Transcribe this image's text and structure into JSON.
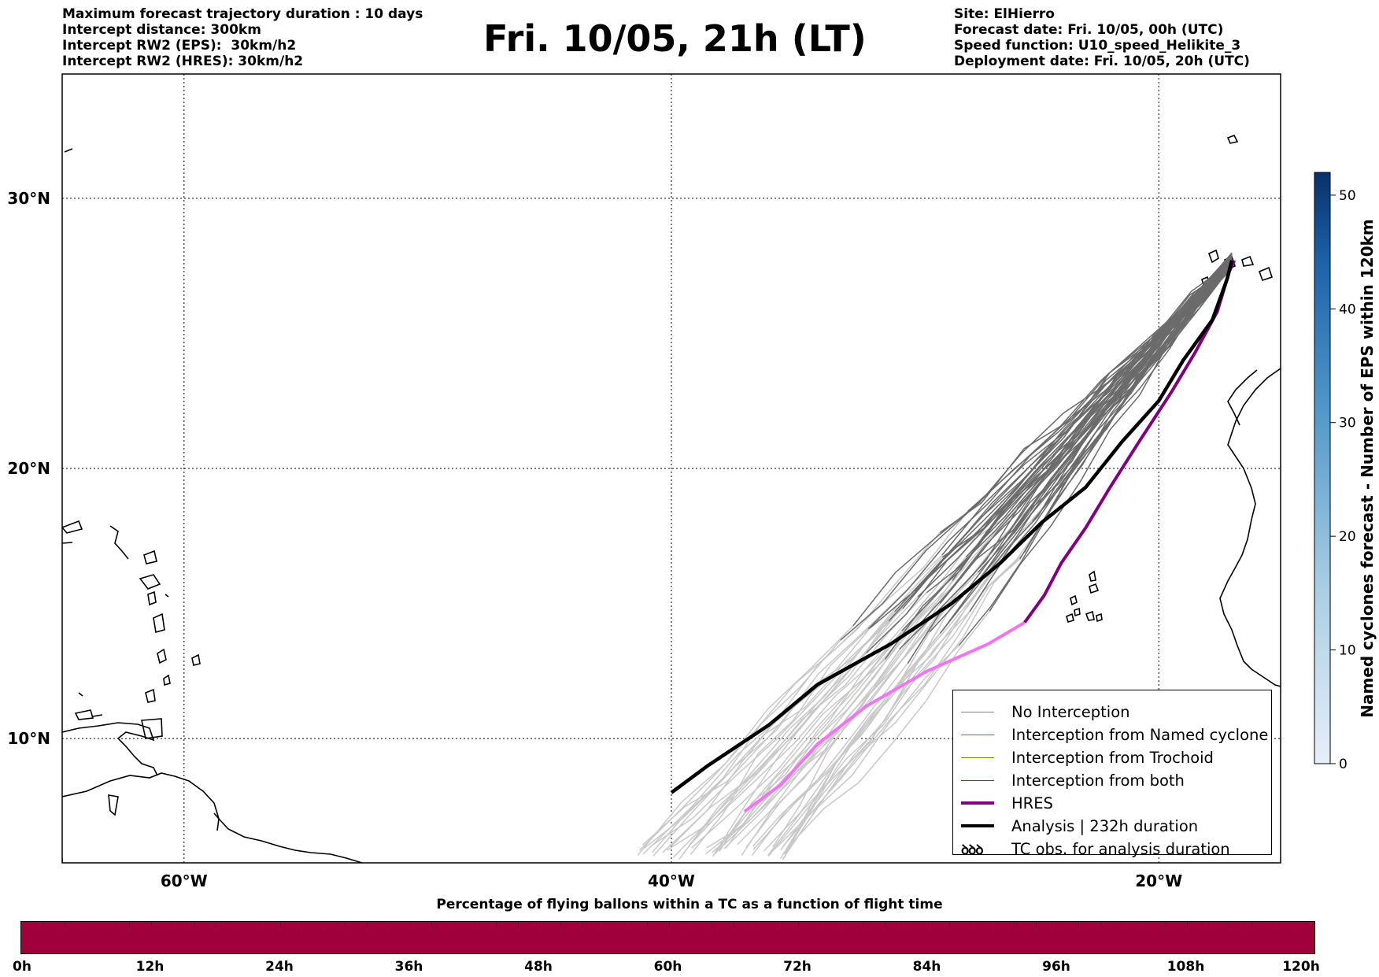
{
  "header": {
    "left_lines": [
      "Maximum forecast trajectory duration : 10 days",
      "Intercept distance: 300km",
      "Intercept RW2 (EPS):  30km/h2",
      "Intercept RW2 (HRES): 30km/h2"
    ],
    "title": "Fri. 10/05, 21h (LT)",
    "right_lines": [
      "Site: ElHierro",
      "Forecast date: Fri. 10/05, 00h (UTC)",
      "Speed function: U10_speed_Helikite_3",
      "Deployment date: Fri. 10/05, 20h (UTC)"
    ]
  },
  "map": {
    "lon_range": [
      -65,
      -15
    ],
    "lat_range": [
      5.4,
      34.6
    ],
    "lon_labels": [
      {
        "lon": -60,
        "label": "60°W"
      },
      {
        "lon": -40,
        "label": "40°W"
      },
      {
        "lon": -20,
        "label": "20°W"
      }
    ],
    "lat_labels": [
      {
        "lat": 30,
        "label": "30°N"
      },
      {
        "lat": 20,
        "label": "20°N"
      },
      {
        "lat": 10,
        "label": "10°N"
      }
    ],
    "grid": true,
    "colors": {
      "no_interception": "#6b6b6b",
      "light_member": "#c8c8c8",
      "hres": "#800080",
      "hres_light": "#ee77ee",
      "analysis": "#000000",
      "coast": "#000000"
    }
  },
  "legend": {
    "items": [
      {
        "label": "No Interception",
        "color": "#808080",
        "symbol": "line-thin"
      },
      {
        "label": "Interception from Named cyclone",
        "color": "#ff4500",
        "symbol": "line-thin"
      },
      {
        "label": "Interception from Trochoid",
        "color": "#808000",
        "symbol": "line-thin"
      },
      {
        "label": "Interception from both",
        "color": "#008000",
        "symbol": "line-thin"
      },
      {
        "label": "HRES",
        "color": "#800080",
        "symbol": "line-thick"
      },
      {
        "label": "Analysis | 232h duration",
        "color": "#000000",
        "symbol": "line-thick"
      },
      {
        "label": "TC obs. for analysis duration",
        "color": "#000000",
        "symbol": "tc-icon",
        "glyph": "ꝺꝺꝺ"
      }
    ]
  },
  "colorbar": {
    "label": "Named cyclones forecast - Number of EPS within 120km",
    "min": 0,
    "max": 52,
    "ticks": [
      0,
      10,
      20,
      30,
      40,
      50
    ],
    "color_low": "#e6eff9",
    "color_high": "#08306b"
  },
  "timebar": {
    "caption": "Percentage of flying ballons within a TC as a function of flight time",
    "color": "#a0003c",
    "hour_labels": [
      "0h",
      "12h",
      "24h",
      "36h",
      "48h",
      "60h",
      "72h",
      "84h",
      "96h",
      "108h",
      "120h"
    ]
  },
  "trajectories": {
    "analysis": [
      [
        -40.0,
        8.0
      ],
      [
        -38.5,
        9.0
      ],
      [
        -36.0,
        10.5
      ],
      [
        -34.0,
        12.0
      ],
      [
        -31.0,
        13.5
      ],
      [
        -28.5,
        15.0
      ],
      [
        -26.5,
        16.5
      ],
      [
        -24.8,
        18.0
      ],
      [
        -23.0,
        19.3
      ],
      [
        -21.5,
        21.0
      ],
      [
        -20.0,
        22.5
      ],
      [
        -19.0,
        24.0
      ],
      [
        -17.8,
        25.5
      ],
      [
        -17.2,
        27.0
      ],
      [
        -17.0,
        27.7
      ]
    ],
    "hres_light": [
      [
        -37.0,
        7.3
      ],
      [
        -35.5,
        8.3
      ],
      [
        -34.0,
        9.8
      ],
      [
        -32.0,
        11.2
      ],
      [
        -29.5,
        12.5
      ],
      [
        -27.0,
        13.5
      ],
      [
        -25.5,
        14.3
      ]
    ],
    "hres_dark": [
      [
        -25.5,
        14.3
      ],
      [
        -24.7,
        15.3
      ],
      [
        -24.0,
        16.5
      ],
      [
        -23.0,
        17.8
      ],
      [
        -22.0,
        19.3
      ],
      [
        -20.8,
        21.0
      ],
      [
        -19.5,
        22.8
      ],
      [
        -18.5,
        24.3
      ],
      [
        -17.6,
        25.8
      ],
      [
        -17.1,
        27.3
      ],
      [
        -16.9,
        27.7
      ]
    ]
  }
}
